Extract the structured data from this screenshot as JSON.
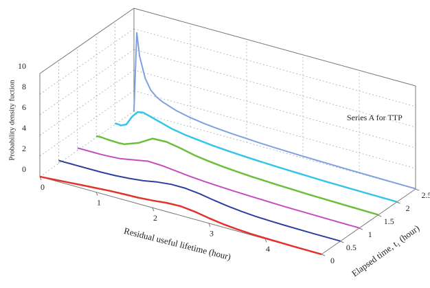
{
  "chart_data": {
    "type": "waterfall3d",
    "annotation": "Series A for TTP",
    "x_label": "Residual useful lifetime (hour)",
    "t_label": "Elapsed time, t₁ (hour)",
    "z_label": "Probability density fuction",
    "xlim": [
      0,
      5
    ],
    "xticks": [
      0,
      1,
      2,
      3,
      4
    ],
    "tlim": [
      0,
      2.5
    ],
    "tticks": [
      0,
      0.5,
      1,
      1.5,
      2,
      2.5
    ],
    "zlim": [
      0,
      10
    ],
    "zticks": [
      0,
      2,
      4,
      6,
      8,
      10
    ],
    "grid": true,
    "x": [
      0,
      0.05,
      0.1,
      0.2,
      0.3,
      0.4,
      0.5,
      0.75,
      1,
      1.25,
      1.5,
      1.75,
      2,
      2.25,
      2.5,
      2.75,
      3,
      3.25,
      3.5,
      3.75,
      4,
      4.5,
      5
    ],
    "series": [
      {
        "t": 0,
        "color": "#e3312b",
        "width": 2.5,
        "values": [
          0,
          0.02,
          0.04,
          0.08,
          0.12,
          0.16,
          0.2,
          0.3,
          0.4,
          0.5,
          0.55,
          0.6,
          0.7,
          0.85,
          0.9,
          0.75,
          0.5,
          0.3,
          0.18,
          0.1,
          0.06,
          0.02,
          0.01
        ]
      },
      {
        "t": 0.5,
        "color": "#2b3f9c",
        "width": 2,
        "values": [
          0.3,
          0.3,
          0.3,
          0.3,
          0.3,
          0.3,
          0.3,
          0.3,
          0.35,
          0.45,
          0.6,
          0.85,
          1.0,
          1.0,
          0.85,
          0.6,
          0.4,
          0.25,
          0.15,
          0.1,
          0.06,
          0.03,
          0.02
        ]
      },
      {
        "t": 1,
        "color": "#c24dbf",
        "width": 2,
        "values": [
          0.25,
          0.25,
          0.25,
          0.25,
          0.25,
          0.25,
          0.27,
          0.35,
          0.6,
          0.85,
          0.8,
          0.65,
          0.5,
          0.4,
          0.32,
          0.26,
          0.21,
          0.17,
          0.13,
          0.1,
          0.08,
          0.05,
          0.03
        ]
      },
      {
        "t": 1.5,
        "color": "#6cbf3a",
        "width": 2.5,
        "values": [
          0.15,
          0.15,
          0.15,
          0.1,
          0.08,
          0.06,
          0.1,
          0.6,
          1.4,
          1.45,
          1.2,
          0.9,
          0.7,
          0.55,
          0.45,
          0.36,
          0.3,
          0.24,
          0.2,
          0.16,
          0.13,
          0.08,
          0.05
        ]
      },
      {
        "t": 2,
        "color": "#35c5e8",
        "width": 2.5,
        "values": [
          0.1,
          0.1,
          0.05,
          0.3,
          1.2,
          1.8,
          1.9,
          1.5,
          1.1,
          0.85,
          0.7,
          0.55,
          0.45,
          0.37,
          0.3,
          0.25,
          0.2,
          0.16,
          0.13,
          0.1,
          0.08,
          0.05,
          0.03
        ]
      },
      {
        "t": 2.5,
        "color": "#7f9fe0",
        "width": 2,
        "values": [
          0,
          7.7,
          5.5,
          3.5,
          2.5,
          2.0,
          1.7,
          1.2,
          0.9,
          0.7,
          0.55,
          0.45,
          0.37,
          0.3,
          0.25,
          0.2,
          0.17,
          0.14,
          0.12,
          0.1,
          0.08,
          0.05,
          0.03
        ]
      }
    ]
  }
}
